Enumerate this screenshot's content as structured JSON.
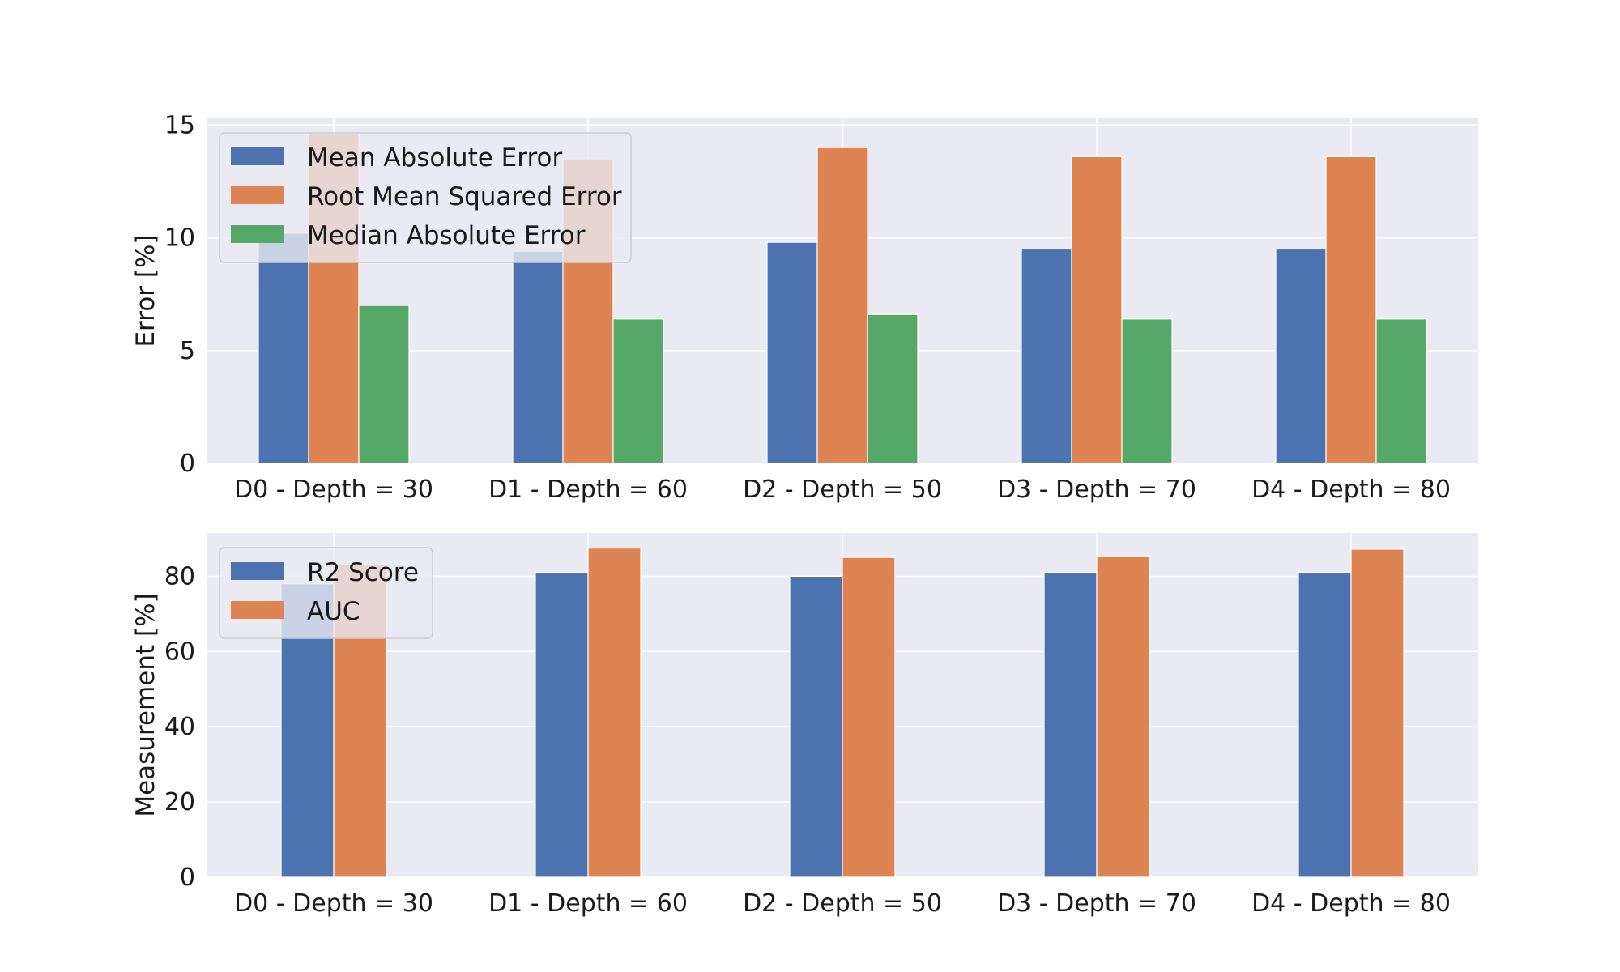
{
  "chart_data": [
    {
      "type": "bar",
      "categories": [
        "D0 - Depth = 30",
        "D1 - Depth = 60",
        "D2 - Depth = 50",
        "D3 - Depth = 70",
        "D4 - Depth = 80"
      ],
      "series": [
        {
          "name": "Mean Absolute Error",
          "color": "#4c72b0",
          "values": [
            10.2,
            9.4,
            9.8,
            9.5,
            9.5
          ]
        },
        {
          "name": "Root Mean Squared Error",
          "color": "#dd8452",
          "values": [
            14.6,
            13.5,
            14.0,
            13.6,
            13.6
          ]
        },
        {
          "name": "Median Absolute Error",
          "color": "#55a868",
          "values": [
            7.0,
            6.4,
            6.6,
            6.4,
            6.4
          ]
        }
      ],
      "ylabel": "Error [%]",
      "ylim": [
        0,
        15.3
      ],
      "yticks": [
        0,
        5,
        10,
        15
      ],
      "grid": true,
      "legend": "upper-left"
    },
    {
      "type": "bar",
      "categories": [
        "D0 - Depth = 30",
        "D1 - Depth = 60",
        "D2 - Depth = 50",
        "D3 - Depth = 70",
        "D4 - Depth = 80"
      ],
      "series": [
        {
          "name": "R2 Score",
          "color": "#4c72b0",
          "values": [
            78,
            81,
            80,
            81,
            81
          ]
        },
        {
          "name": "AUC",
          "color": "#dd8452",
          "values": [
            83,
            87.5,
            85,
            85.2,
            87.2
          ]
        }
      ],
      "ylabel": "Measurement [%]",
      "ylim": [
        0,
        91.5
      ],
      "yticks": [
        0,
        20,
        40,
        60,
        80
      ],
      "grid": true,
      "legend": "upper-left"
    }
  ],
  "style": {
    "plot_background": "#eaeaf2",
    "grid_color": "#ffffff",
    "text_color": "#1a1a1a"
  }
}
